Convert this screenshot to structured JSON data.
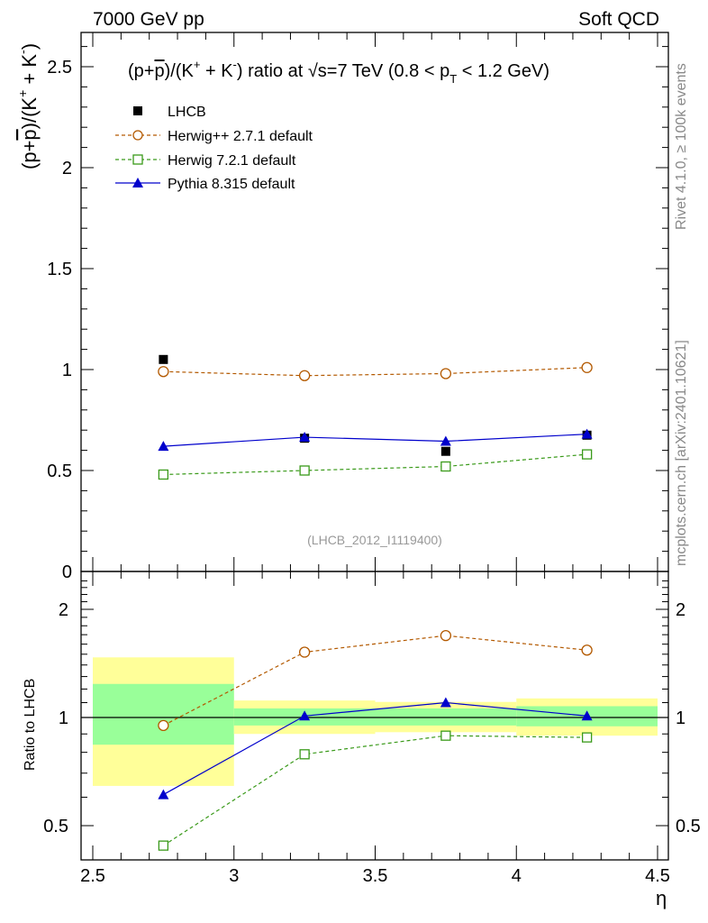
{
  "header": {
    "left": "7000 GeV pp",
    "right": "Soft QCD"
  },
  "side": {
    "rivet": "Rivet 4.1.0, ≥ 100k events",
    "mcplots": "mcplots.cern.ch [arXiv:2401.10621]"
  },
  "colors": {
    "lhcb": "#000000",
    "herwigpp": "#b35900",
    "herwig7": "#3a9a1a",
    "pythia": "#0000cc",
    "band_inner": "#99ff99",
    "band_outer": "#ffff99"
  },
  "chart_data": [
    {
      "type": "scatter",
      "title": "(p+p̅)/(K⁺ + K⁻) ratio at √s=7 TeV (0.8 < p_T < 1.2 GeV)",
      "title_parts": {
        "a": "(p+",
        "pbar": "p",
        "b": ")/(K",
        "kplus": "+",
        "c": " + K",
        "kminus": "-",
        "d": ") ratio at ",
        "sqrt": "√",
        "e": "s=7 TeV (0.8 < p",
        "sub": "T",
        "f": " < 1.2 GeV)"
      },
      "ylabel": "(p+p̅)/(K⁺ + K⁻)",
      "ylabel_parts": {
        "a": "(p+",
        "pbar": "p",
        "b": ")/(K",
        "kplus": "+",
        "c": " + K",
        "kminus": "-",
        "d": ")"
      },
      "xlim": [
        2.5,
        4.5
      ],
      "ylim": [
        0,
        2.7
      ],
      "yticks": [
        {
          "v": 0.5,
          "label": "0.5"
        },
        {
          "v": 1,
          "label": "1"
        },
        {
          "v": 1.5,
          "label": "1.5"
        },
        {
          "v": 2,
          "label": "2"
        },
        {
          "v": 2.5,
          "label": "2.5"
        },
        {
          "v": 0,
          "label": "0"
        }
      ],
      "watermark": "(LHCB_2012_I1119400)",
      "legend_position": "top-left",
      "x_bins": [
        [
          2.5,
          3.0
        ],
        [
          3.0,
          3.5
        ],
        [
          3.5,
          4.0
        ],
        [
          4.0,
          4.5
        ]
      ],
      "x": [
        2.75,
        3.25,
        3.75,
        4.25
      ],
      "series": [
        {
          "name": "LHCB",
          "key": "lhcb",
          "marker": "filled-square",
          "line": "none",
          "values": [
            1.05,
            0.66,
            0.595,
            0.675
          ],
          "errors": [
            0.01,
            0.01,
            0.01,
            0.01
          ]
        },
        {
          "name": "Herwig++ 2.7.1 default",
          "key": "herwigpp",
          "marker": "open-circle",
          "line": "dashed",
          "values": [
            0.99,
            0.97,
            0.98,
            1.01
          ],
          "errors": [
            0.025,
            0.025,
            0.025,
            0.025
          ]
        },
        {
          "name": "Herwig 7.2.1 default",
          "key": "herwig7",
          "marker": "open-square",
          "line": "dashed",
          "values": [
            0.48,
            0.5,
            0.52,
            0.58
          ],
          "errors": [
            0.005,
            0.005,
            0.005,
            0.005
          ]
        },
        {
          "name": "Pythia 8.315 default",
          "key": "pythia",
          "marker": "filled-triangle",
          "line": "solid",
          "values": [
            0.62,
            0.665,
            0.645,
            0.68
          ],
          "errors": [
            0.005,
            0.005,
            0.005,
            0.005
          ]
        }
      ]
    },
    {
      "type": "scatter",
      "ylabel": "Ratio to LHCB",
      "xlabel": "η",
      "xlim": [
        2.5,
        4.5
      ],
      "ylim": [
        0.4,
        2.4
      ],
      "yscale": "log",
      "yticks": [
        {
          "v": 0.5,
          "label": "0.5"
        },
        {
          "v": 1,
          "label": "1"
        },
        {
          "v": 2,
          "label": "2"
        }
      ],
      "xticks": [
        {
          "v": 2.5,
          "label": "2.5"
        },
        {
          "v": 3,
          "label": "3"
        },
        {
          "v": 3.5,
          "label": "3.5"
        },
        {
          "v": 4,
          "label": "4"
        },
        {
          "v": 4.5,
          "label": "4.5"
        }
      ],
      "reference_line": 1,
      "bands": {
        "inner": [
          [
            0.84,
            1.24
          ],
          [
            0.95,
            1.06
          ],
          [
            0.95,
            1.06
          ],
          [
            0.945,
            1.075
          ]
        ],
        "outer": [
          [
            0.645,
            1.47
          ],
          [
            0.9,
            1.115
          ],
          [
            0.91,
            1.105
          ],
          [
            0.89,
            1.13
          ]
        ]
      },
      "series": [
        {
          "name": "Herwig++ 2.7.1 default",
          "key": "herwigpp",
          "marker": "open-circle",
          "line": "dashed",
          "values": [
            0.95,
            1.52,
            1.69,
            1.54
          ],
          "errors": [
            0.03,
            0.04,
            0.04,
            0.05
          ]
        },
        {
          "name": "Herwig 7.2.1 default",
          "key": "herwig7",
          "marker": "open-square",
          "line": "dashed",
          "values": [
            0.44,
            0.79,
            0.89,
            0.88
          ],
          "errors": [
            0.005,
            0.01,
            0.01,
            0.01
          ]
        },
        {
          "name": "Pythia 8.315 default",
          "key": "pythia",
          "marker": "filled-triangle",
          "line": "solid",
          "values": [
            0.61,
            1.01,
            1.1,
            1.01
          ],
          "errors": [
            0.005,
            0.02,
            0.025,
            0.02
          ]
        }
      ]
    }
  ]
}
